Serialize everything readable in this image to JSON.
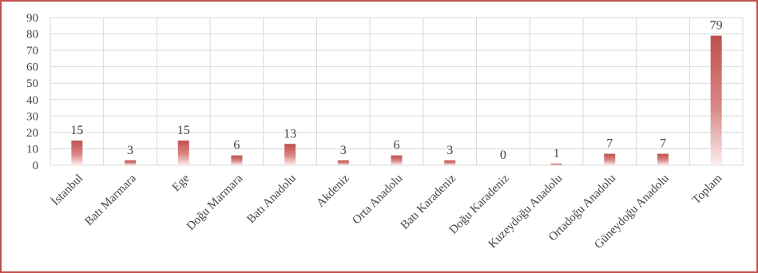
{
  "chart_data": {
    "type": "bar",
    "title": "",
    "xlabel": "",
    "ylabel": "",
    "ylim": [
      0,
      90
    ],
    "yticks": [
      0,
      10,
      20,
      30,
      40,
      50,
      60,
      70,
      80,
      90
    ],
    "grid": true,
    "legend": "none",
    "categories": [
      "İstanbul",
      "Batı Marmara",
      "Ege",
      "Doğu Marmara",
      "Batı Anadolu",
      "Akdeniz",
      "Orta Anadolu",
      "Batı Karadeniz",
      "Doğu Karadeniz",
      "Kuzeydoğu Anadolu",
      "Ortadoğu Anadolu",
      "Güneydoğu Anadolu",
      "Toplam"
    ],
    "values": [
      15,
      3,
      15,
      6,
      13,
      3,
      6,
      3,
      0,
      1,
      7,
      7,
      79
    ],
    "data_labels": [
      "15",
      "3",
      "15",
      "6",
      "13",
      "3",
      "6",
      "3",
      "0",
      "1",
      "7",
      "7",
      "79"
    ],
    "bar_color": "#c0504d",
    "border_color": "#c0504d",
    "grid_color": "#d9d9d9"
  }
}
